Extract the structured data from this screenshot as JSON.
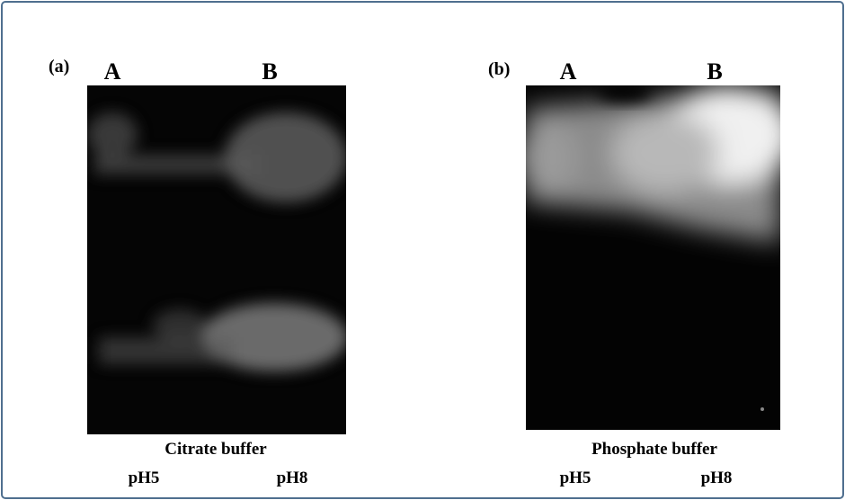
{
  "panels": [
    {
      "label": "(a)",
      "lanes": [
        "A",
        "B"
      ],
      "caption": "Citrate buffer",
      "conditions": [
        "pH5",
        "pH8"
      ]
    },
    {
      "label": "(b)",
      "lanes": [
        "A",
        "B"
      ],
      "caption": "Phosphate buffer",
      "conditions": [
        "pH5",
        "pH8"
      ]
    }
  ]
}
